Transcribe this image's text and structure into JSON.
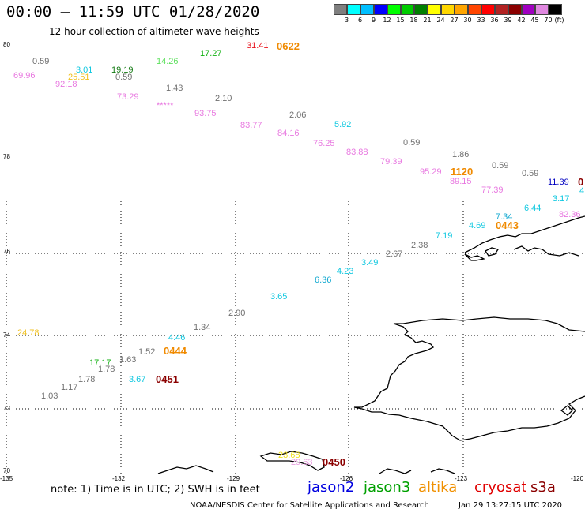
{
  "header": {
    "title": "00:00 – 11:59 UTC 01/28/2020",
    "subtitle": "12 hour collection of altimeter wave heights"
  },
  "legend": {
    "unit": "(ft)",
    "bins": [
      {
        "label": "3",
        "color": "#7f7f7f"
      },
      {
        "label": "6",
        "color": "#00ffff"
      },
      {
        "label": "9",
        "color": "#00bfff"
      },
      {
        "label": "12",
        "color": "#0000ff"
      },
      {
        "label": "15",
        "color": "#00ff00"
      },
      {
        "label": "18",
        "color": "#00cc00"
      },
      {
        "label": "21",
        "color": "#008000"
      },
      {
        "label": "24",
        "color": "#ffff00"
      },
      {
        "label": "27",
        "color": "#ffd700"
      },
      {
        "label": "30",
        "color": "#ffa500"
      },
      {
        "label": "33",
        "color": "#ff4500"
      },
      {
        "label": "36",
        "color": "#ff0000"
      },
      {
        "label": "39",
        "color": "#b22222"
      },
      {
        "label": "42",
        "color": "#8b0000"
      },
      {
        "label": "45",
        "color": "#a000c0"
      },
      {
        "label": "70",
        "color": "#e088e0"
      },
      {
        "label": "",
        "color": "#000000"
      }
    ]
  },
  "axes": {
    "lat_labels": [
      "80",
      "78",
      "76",
      "74",
      "72",
      "70"
    ],
    "lon_labels": [
      "-135",
      "-132",
      "-129",
      "-126",
      "-123",
      "-120"
    ]
  },
  "map": {
    "wave_labels": [
      {
        "text": "31.41",
        "color": "#e8101a"
      },
      {
        "text": "0622",
        "color": "#f08a00"
      },
      {
        "text": "17.27",
        "color": "#10b010"
      },
      {
        "text": "14.26",
        "color": "#5ee05e"
      },
      {
        "text": "0.59",
        "color": "#707070"
      },
      {
        "text": "19.19",
        "color": "#107810"
      },
      {
        "text": "3.01",
        "color": "#10c8e0"
      },
      {
        "text": "69.96",
        "color": "#e878e0"
      },
      {
        "text": "25.51",
        "color": "#f0c020"
      },
      {
        "text": "0.59",
        "color": "#707070"
      },
      {
        "text": "92.18",
        "color": "#e878e0"
      },
      {
        "text": "1.43",
        "color": "#707070"
      },
      {
        "text": "73.29",
        "color": "#e878e0"
      },
      {
        "text": "*****",
        "color": "#e878e0"
      },
      {
        "text": "2.10",
        "color": "#707070"
      },
      {
        "text": "93.75",
        "color": "#e878e0"
      },
      {
        "text": "2.06",
        "color": "#707070"
      },
      {
        "text": "83.77",
        "color": "#e878e0"
      },
      {
        "text": "5.92",
        "color": "#10c8e0"
      },
      {
        "text": "84.16",
        "color": "#e878e0"
      },
      {
        "text": "76.25",
        "color": "#e878e0"
      },
      {
        "text": "83.88",
        "color": "#e878e0"
      },
      {
        "text": "0.59",
        "color": "#707070"
      },
      {
        "text": "79.39",
        "color": "#e878e0"
      },
      {
        "text": "1.86",
        "color": "#707070"
      },
      {
        "text": "95.29",
        "color": "#e878e0"
      },
      {
        "text": "1120",
        "color": "#f08a00"
      },
      {
        "text": "0.59",
        "color": "#707070"
      },
      {
        "text": "89.15",
        "color": "#e878e0"
      },
      {
        "text": "0.59",
        "color": "#707070"
      },
      {
        "text": "77.39",
        "color": "#e878e0"
      },
      {
        "text": "11.39",
        "color": "#0000c0"
      },
      {
        "text": "0",
        "color": "#8b0000"
      },
      {
        "text": "3.17",
        "color": "#10c8e0"
      },
      {
        "text": "4",
        "color": "#10c8e0"
      },
      {
        "text": "6.44",
        "color": "#10c8e0"
      },
      {
        "text": "7.34",
        "color": "#10a8d0"
      },
      {
        "text": "82.36",
        "color": "#e878e0"
      },
      {
        "text": "4.69",
        "color": "#10c8e0"
      },
      {
        "text": "0443",
        "color": "#f08a00"
      },
      {
        "text": "7.19",
        "color": "#10c8e0"
      },
      {
        "text": "2.38",
        "color": "#707070"
      },
      {
        "text": "2.67",
        "color": "#707070"
      },
      {
        "text": "3.49",
        "color": "#10c8e0"
      },
      {
        "text": "4.23",
        "color": "#10c8e0"
      },
      {
        "text": "6.36",
        "color": "#10a8d0"
      },
      {
        "text": "3.65",
        "color": "#10c8e0"
      },
      {
        "text": "2.90",
        "color": "#707070"
      },
      {
        "text": "24.78",
        "color": "#f0c020"
      },
      {
        "text": "1.34",
        "color": "#707070"
      },
      {
        "text": "4.46",
        "color": "#10c8e0"
      },
      {
        "text": "1.52",
        "color": "#707070"
      },
      {
        "text": "0444",
        "color": "#f08a00"
      },
      {
        "text": "1.63",
        "color": "#707070"
      },
      {
        "text": "17.17",
        "color": "#10b010"
      },
      {
        "text": "1.78",
        "color": "#707070"
      },
      {
        "text": "1.78",
        "color": "#707070"
      },
      {
        "text": "3.67",
        "color": "#10c8e0"
      },
      {
        "text": "0451",
        "color": "#8b0000"
      },
      {
        "text": "1.17",
        "color": "#707070"
      },
      {
        "text": "1.03",
        "color": "#707070"
      },
      {
        "text": "23.68",
        "color": "#f0e020"
      },
      {
        "text": "29.63",
        "color": "#e8a0e0"
      },
      {
        "text": "0450",
        "color": "#8b0000"
      }
    ]
  },
  "footer": {
    "note": "note: 1) Time is in UTC; 2) SWH is in feet",
    "satellites": [
      {
        "name": "jason2",
        "color": "#0000e0"
      },
      {
        "name": "jason3",
        "color": "#00a000"
      },
      {
        "name": "altika",
        "color": "#f09000"
      },
      {
        "name": "cryosat",
        "color": "#e00000"
      },
      {
        "name": "s3a",
        "color": "#8b0000"
      }
    ],
    "credit": "NOAA/NESDIS Center for Satellite Applications and Research",
    "timestamp": "Jan 29 13:27:15 UTC 2020"
  }
}
